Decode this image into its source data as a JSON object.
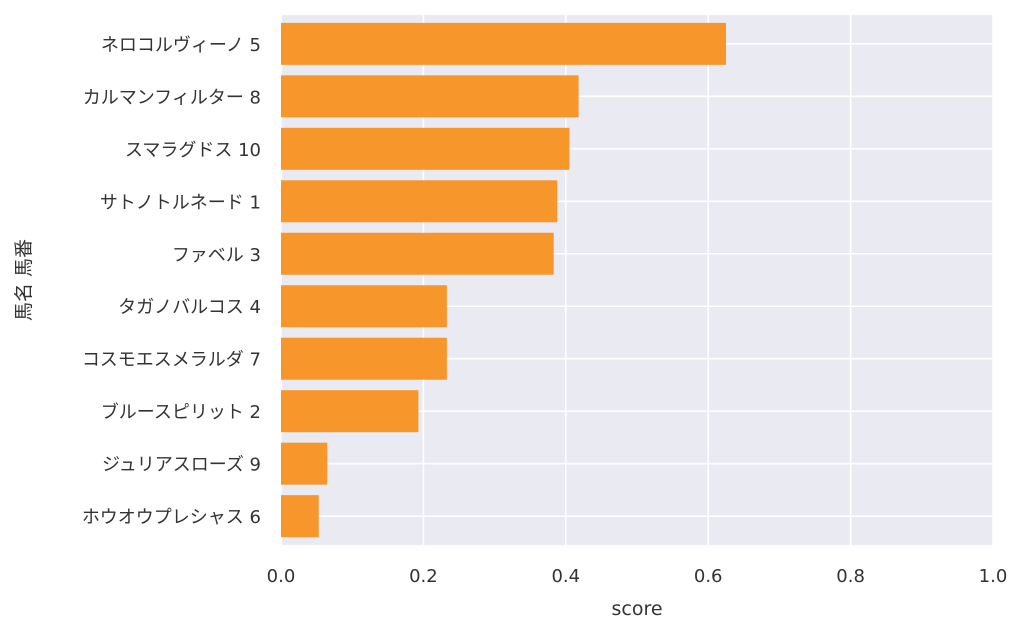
{
  "chart_data": {
    "type": "bar",
    "orientation": "horizontal",
    "categories": [
      "ネロコルヴィーノ 5",
      "カルマンフィルター 8",
      "スマラグドス 10",
      "サトノトルネード 1",
      "ファベル 3",
      "タガノバルコス 4",
      "コスモエスメラルダ 7",
      "ブルースピリット 2",
      "ジュリアスローズ 9",
      "ホウオウプレシャス 6"
    ],
    "values": [
      0.625,
      0.418,
      0.405,
      0.388,
      0.383,
      0.233,
      0.233,
      0.193,
      0.065,
      0.053
    ],
    "xlabel": "score",
    "ylabel": "馬名 馬番",
    "xlim": [
      0.0,
      1.0
    ],
    "xticks": [
      "0.0",
      "0.2",
      "0.4",
      "0.6",
      "0.8",
      "1.0"
    ],
    "grid": true,
    "colors": {
      "bar": "#f7962b",
      "plot_background": "#eaeaf2",
      "grid": "#ffffff",
      "text": "#333333"
    }
  }
}
